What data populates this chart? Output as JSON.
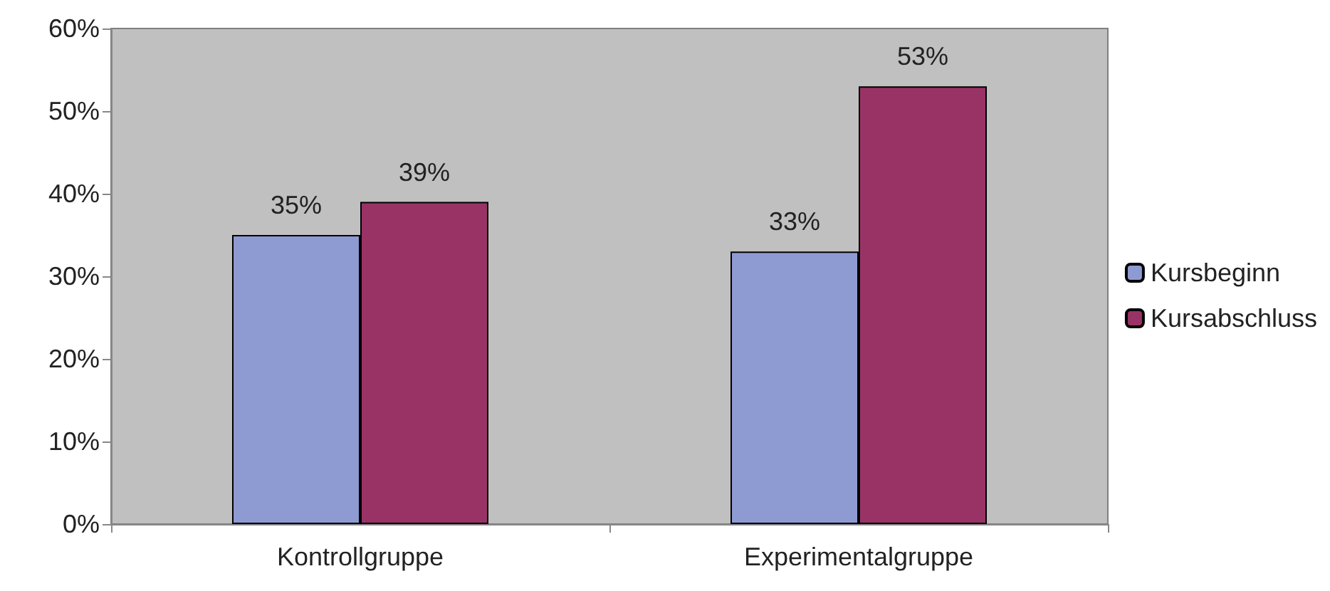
{
  "chart_data": {
    "type": "bar",
    "categories": [
      "Kontrollgruppe",
      "Experimentalgruppe"
    ],
    "series": [
      {
        "name": "Kursbeginn",
        "color": "#8e9ad2",
        "values": [
          35,
          33
        ],
        "value_labels": [
          "35%",
          "33%"
        ]
      },
      {
        "name": "Kursabschluss",
        "color": "#993366",
        "values": [
          39,
          53
        ],
        "value_labels": [
          "39%",
          "53%"
        ]
      }
    ],
    "ylim": [
      0,
      60
    ],
    "yticks": [
      {
        "value": 0,
        "label": "0%"
      },
      {
        "value": 10,
        "label": "10%"
      },
      {
        "value": 20,
        "label": "20%"
      },
      {
        "value": 30,
        "label": "30%"
      },
      {
        "value": 40,
        "label": "40%"
      },
      {
        "value": 50,
        "label": "50%"
      },
      {
        "value": 60,
        "label": "60%"
      }
    ],
    "grid": false,
    "legend": "right"
  }
}
